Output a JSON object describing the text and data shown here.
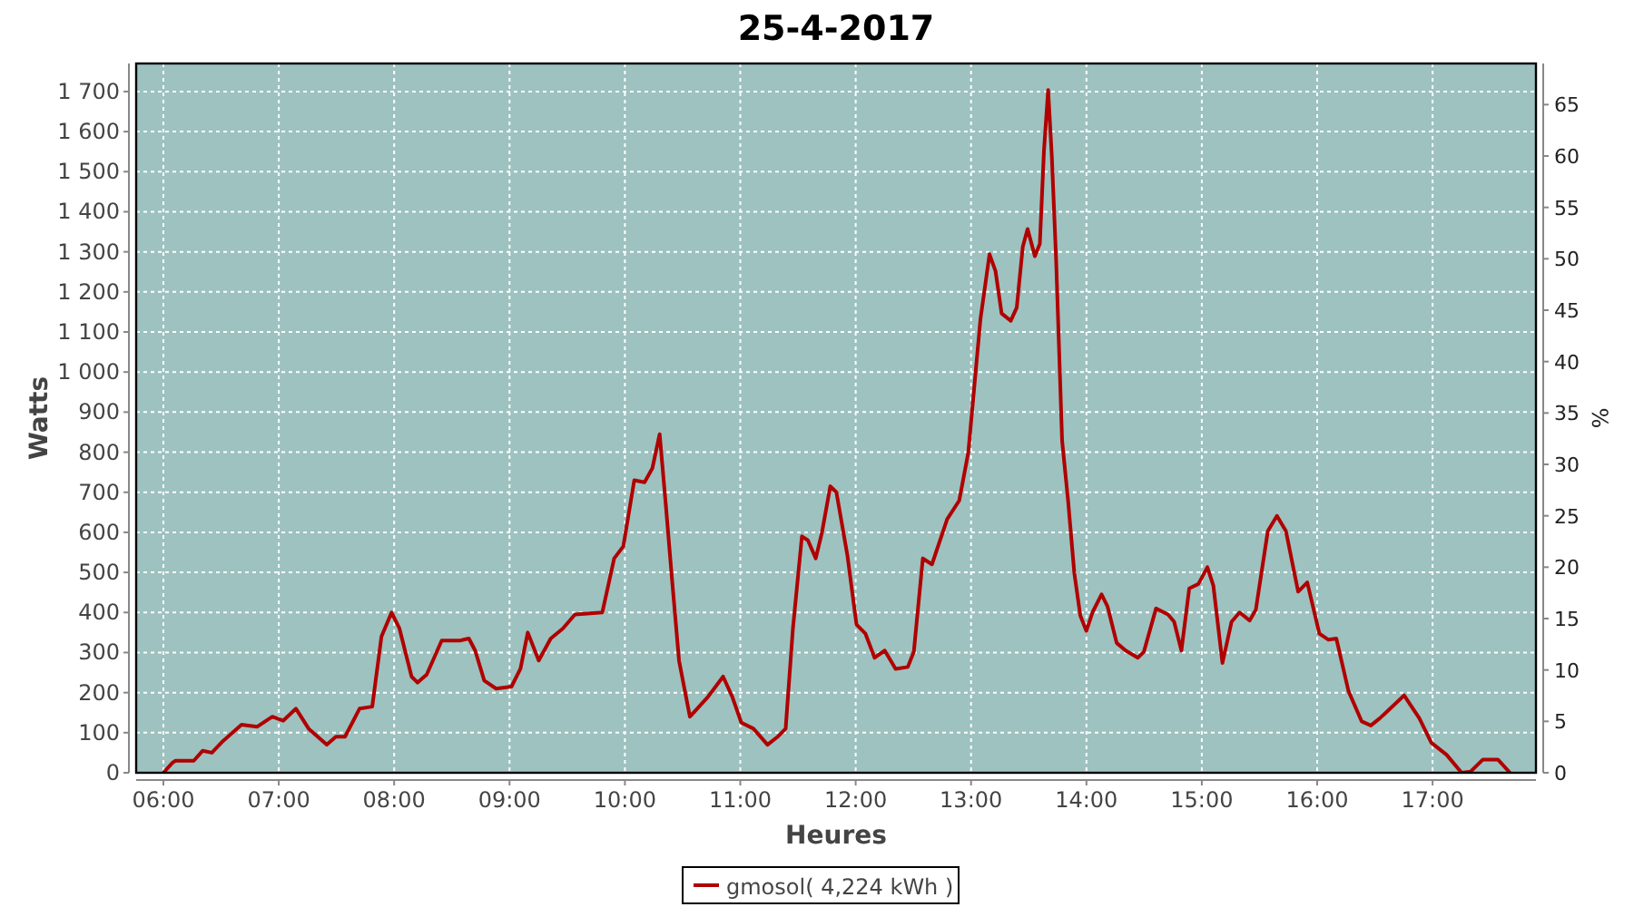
{
  "chart_data": {
    "type": "line",
    "title": "25-4-2017",
    "xlabel": "Heures",
    "ylabel": "Watts",
    "y2label": "%",
    "xlim": [
      5.764,
      17.896
    ],
    "ylim": [
      0,
      1770
    ],
    "y2lim": [
      0,
      69
    ],
    "xticks": [
      {
        "value": 6,
        "label": "06:00"
      },
      {
        "value": 7,
        "label": "07:00"
      },
      {
        "value": 8,
        "label": "08:00"
      },
      {
        "value": 9,
        "label": "09:00"
      },
      {
        "value": 10,
        "label": "10:00"
      },
      {
        "value": 11,
        "label": "11:00"
      },
      {
        "value": 12,
        "label": "12:00"
      },
      {
        "value": 13,
        "label": "13:00"
      },
      {
        "value": 14,
        "label": "14:00"
      },
      {
        "value": 15,
        "label": "15:00"
      },
      {
        "value": 16,
        "label": "16:00"
      },
      {
        "value": 17,
        "label": "17:00"
      }
    ],
    "yticks": [
      0,
      100,
      200,
      300,
      400,
      500,
      600,
      700,
      800,
      900,
      {
        "value": 1000,
        "label": "1 000"
      },
      {
        "value": 1100,
        "label": "1 100"
      },
      {
        "value": 1200,
        "label": "1 200"
      },
      {
        "value": 1300,
        "label": "1 300"
      },
      {
        "value": 1400,
        "label": "1 400"
      },
      {
        "value": 1500,
        "label": "1 500"
      },
      {
        "value": 1600,
        "label": "1 600"
      },
      {
        "value": 1700,
        "label": "1 700"
      }
    ],
    "y2ticks": [
      0,
      5,
      10,
      15,
      20,
      25,
      30,
      35,
      40,
      45,
      50,
      55,
      60,
      65
    ],
    "grid": true,
    "legend": "bottom",
    "line_style": "solid",
    "x": [
      6.0,
      6.079,
      6.105,
      6.263,
      6.341,
      6.42,
      6.519,
      6.677,
      6.814,
      6.944,
      7.039,
      7.149,
      7.259,
      7.416,
      7.495,
      7.574,
      7.7,
      7.81,
      7.89,
      7.978,
      8.046,
      8.151,
      8.203,
      8.282,
      8.412,
      8.57,
      8.648,
      8.702,
      8.781,
      8.884,
      9.017,
      9.095,
      9.158,
      9.253,
      9.357,
      9.462,
      9.567,
      9.804,
      9.907,
      9.986,
      10.081,
      10.17,
      10.238,
      10.301,
      10.354,
      10.406,
      10.469,
      10.563,
      10.721,
      10.851,
      10.93,
      11.009,
      11.114,
      11.236,
      11.324,
      11.393,
      11.456,
      11.534,
      11.586,
      11.654,
      11.708,
      11.78,
      11.833,
      11.928,
      12.007,
      12.085,
      12.164,
      12.252,
      12.346,
      12.452,
      12.504,
      12.582,
      12.661,
      12.793,
      12.897,
      12.976,
      13.081,
      13.16,
      13.212,
      13.265,
      13.344,
      13.396,
      13.448,
      13.49,
      13.553,
      13.596,
      13.632,
      13.668,
      13.7,
      13.737,
      13.789,
      13.841,
      13.895,
      13.947,
      13.999,
      14.052,
      14.131,
      14.183,
      14.262,
      14.34,
      14.446,
      14.498,
      14.603,
      14.707,
      14.76,
      14.823,
      14.891,
      14.97,
      15.048,
      15.1,
      15.179,
      15.258,
      15.327,
      15.415,
      15.468,
      15.572,
      15.651,
      15.729,
      15.835,
      15.914,
      16.019,
      16.098,
      16.166,
      16.271,
      16.386,
      16.465,
      16.543,
      16.753,
      16.885,
      16.989,
      17.121,
      17.252,
      17.33,
      17.436,
      17.566,
      17.671
    ],
    "series": [
      {
        "name": "gmosol( 4,224 kWh )",
        "color": "#b00000",
        "values": [
          0,
          25,
          30,
          30,
          55,
          50,
          80,
          120,
          115,
          140,
          130,
          160,
          110,
          70,
          90,
          90,
          160,
          165,
          340,
          400,
          360,
          240,
          225,
          245,
          330,
          330,
          335,
          305,
          230,
          210,
          215,
          260,
          350,
          280,
          335,
          360,
          395,
          400,
          535,
          565,
          730,
          725,
          760,
          845,
          670,
          490,
          280,
          140,
          190,
          240,
          190,
          125,
          110,
          70,
          90,
          110,
          360,
          590,
          580,
          535,
          600,
          715,
          700,
          543,
          370,
          347,
          287,
          305,
          259,
          264,
          302,
          535,
          520,
          633,
          679,
          799,
          1131,
          1294,
          1252,
          1146,
          1128,
          1161,
          1312,
          1357,
          1289,
          1320,
          1553,
          1704,
          1538,
          1282,
          829,
          679,
          498,
          392,
          354,
          400,
          445,
          415,
          324,
          305,
          287,
          302,
          410,
          395,
          377,
          305,
          460,
          471,
          513,
          467,
          274,
          377,
          400,
          380,
          407,
          603,
          641,
          603,
          452,
          475,
          347,
          332,
          335,
          204,
          128,
          118,
          136,
          193,
          136,
          75,
          45,
          0,
          3,
          33,
          33,
          0
        ]
      }
    ]
  }
}
